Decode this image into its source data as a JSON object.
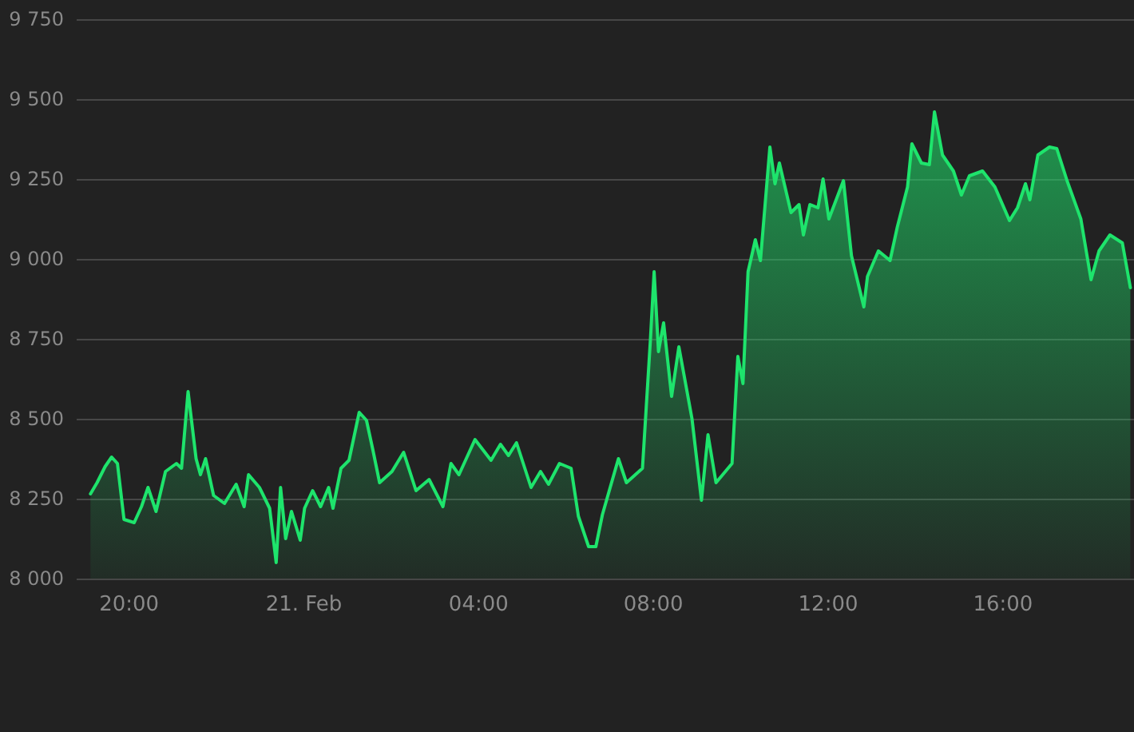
{
  "chart_data": {
    "type": "area",
    "x": [
      "--02-20T19:07",
      "--02-20T19:16",
      "--02-20T19:27",
      "--02-20T19:36",
      "--02-20T19:44",
      "--02-20T19:53",
      "--02-20T20:07",
      "--02-20T20:17",
      "--02-20T20:26",
      "--02-20T20:37",
      "--02-20T20:50",
      "--02-20T21:05",
      "--02-20T21:12",
      "--02-20T21:21",
      "--02-20T21:32",
      "--02-20T21:38",
      "--02-20T21:45",
      "--02-20T21:56",
      "--02-20T22:11",
      "--02-20T22:27",
      "--02-20T22:38",
      "--02-20T22:44",
      "--02-20T22:59",
      "--02-20T23:13",
      "--02-20T23:22",
      "--02-20T23:28",
      "--02-20T23:35",
      "--02-20T23:43",
      "--02-20T23:55",
      "--02-21T00:01",
      "--02-21T00:12",
      "--02-21T00:23",
      "--02-21T00:34",
      "--02-21T00:40",
      "--02-21T00:51",
      "--02-21T01:02",
      "--02-21T01:16",
      "--02-21T01:26",
      "--02-21T01:35",
      "--02-21T01:44",
      "--02-21T02:01",
      "--02-21T02:17",
      "--02-21T02:34",
      "--02-21T02:52",
      "--02-21T03:11",
      "--02-21T03:22",
      "--02-21T03:33",
      "--02-21T03:55",
      "--02-21T04:17",
      "--02-21T04:30",
      "--02-21T04:41",
      "--02-21T04:52",
      "--02-21T05:12",
      "--02-21T05:25",
      "--02-21T05:36",
      "--02-21T05:51",
      "--02-21T06:07",
      "--02-21T06:17",
      "--02-21T06:31",
      "--02-21T06:41",
      "--02-21T06:50",
      "--02-21T07:12",
      "--02-21T07:23",
      "--02-21T07:45",
      "--02-21T07:56",
      "--02-21T08:01",
      "--02-21T08:07",
      "--02-21T08:14",
      "--02-21T08:25",
      "--02-21T08:35",
      "--02-21T08:53",
      "--02-21T09:06",
      "--02-21T09:15",
      "--02-21T09:26",
      "--02-21T09:48",
      "--02-21T09:56",
      "--02-21T10:03",
      "--02-21T10:10",
      "--02-21T10:20",
      "--02-21T10:27",
      "--02-21T10:40",
      "--02-21T10:47",
      "--02-21T10:53",
      "--02-21T11:09",
      "--02-21T11:20",
      "--02-21T11:26",
      "--02-21T11:35",
      "--02-21T11:46",
      "--02-21T11:53",
      "--02-21T12:01",
      "--02-21T12:21",
      "--02-21T12:32",
      "--02-21T12:49",
      "--02-21T12:54",
      "--02-21T13:09",
      "--02-21T13:25",
      "--02-21T13:35",
      "--02-21T13:49",
      "--02-21T13:55",
      "--02-21T14:08",
      "--02-21T14:19",
      "--02-21T14:26",
      "--02-21T14:37",
      "--02-21T14:52",
      "--02-21T15:03",
      "--02-21T15:14",
      "--02-21T15:32",
      "--02-21T15:49",
      "--02-21T16:09",
      "--02-21T16:20",
      "--02-21T16:31",
      "--02-21T16:37",
      "--02-21T16:48",
      "--02-21T17:04",
      "--02-21T17:14",
      "--02-21T17:28",
      "--02-21T17:47",
      "--02-21T18:01",
      "--02-21T18:12",
      "--02-21T18:27",
      "--02-21T18:44",
      "--02-21T18:55"
    ],
    "series": [
      {
        "color": "#1ee46c",
        "values": [
          8265,
          8300,
          8350,
          8380,
          8360,
          8185,
          8175,
          8225,
          8285,
          8210,
          8335,
          8360,
          8345,
          8585,
          8375,
          8325,
          8375,
          8260,
          8235,
          8295,
          8225,
          8325,
          8285,
          8220,
          8050,
          8285,
          8125,
          8210,
          8120,
          8220,
          8275,
          8225,
          8285,
          8220,
          8345,
          8370,
          8520,
          8495,
          8400,
          8300,
          8335,
          8395,
          8275,
          8310,
          8225,
          8360,
          8325,
          8435,
          8370,
          8420,
          8385,
          8425,
          8285,
          8335,
          8295,
          8360,
          8345,
          8195,
          8100,
          8100,
          8200,
          8375,
          8300,
          8345,
          8750,
          8960,
          8710,
          8800,
          8570,
          8725,
          8500,
          8245,
          8450,
          8300,
          8360,
          8695,
          8610,
          8960,
          9060,
          8995,
          9350,
          9235,
          9300,
          9145,
          9170,
          9075,
          9170,
          9160,
          9250,
          9125,
          9245,
          9010,
          8850,
          8945,
          9025,
          8995,
          9100,
          9225,
          9360,
          9300,
          9295,
          9460,
          9325,
          9275,
          9200,
          9260,
          9275,
          9225,
          9120,
          9160,
          9235,
          9185,
          9325,
          9350,
          9345,
          9245,
          9125,
          8935,
          9025,
          9075,
          9050,
          8910
        ]
      }
    ],
    "xlim": [
      "--02-20T18:48",
      "--02-21T19:00"
    ],
    "xticks": [
      {
        "value": "--02-20T20:00",
        "label": "20:00"
      },
      {
        "value": "--02-21T00:00",
        "label": "21. Feb"
      },
      {
        "value": "--02-21T04:00",
        "label": "04:00"
      },
      {
        "value": "--02-21T08:00",
        "label": "08:00"
      },
      {
        "value": "--02-21T12:00",
        "label": "12:00"
      },
      {
        "value": "--02-21T16:00",
        "label": "16:00"
      }
    ],
    "ylim": [
      8000,
      9750
    ],
    "yticks": [
      {
        "value": 8000,
        "label": "8 000"
      },
      {
        "value": 8250,
        "label": "8 250"
      },
      {
        "value": 8500,
        "label": "8 500"
      },
      {
        "value": 8750,
        "label": "8 750"
      },
      {
        "value": 9000,
        "label": "9 000"
      },
      {
        "value": 9250,
        "label": "9 250"
      },
      {
        "value": 9500,
        "label": "9 500"
      },
      {
        "value": 9750,
        "label": "9 750"
      }
    ],
    "grid": "y",
    "marker": "none",
    "line_style": "solid"
  }
}
